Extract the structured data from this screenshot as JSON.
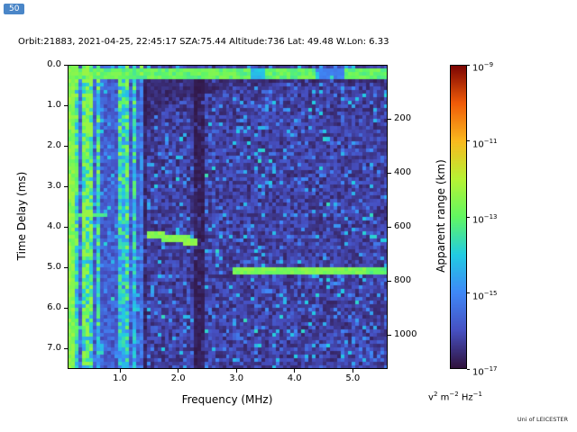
{
  "badge": {
    "label": "50"
  },
  "header": {
    "title": "Orbit:21883, 2021-04-25, 22:45:17 SZA:75.44 Altitude:736 Lat: 49.48 W.Lon: 6.33"
  },
  "footer": {
    "credit": "Uni of LEICESTER"
  },
  "chart_data": {
    "type": "heatmap",
    "title": "",
    "xlabel": "Frequency (MHz)",
    "ylabel": "Time Delay (ms)",
    "y2label": "Apparent range (km)",
    "x_range_mhz": [
      0.1,
      5.6
    ],
    "y_range_ms": [
      0.0,
      7.5
    ],
    "x_ticks": [
      {
        "value": 1.0,
        "label": "1.0"
      },
      {
        "value": 2.0,
        "label": "2.0"
      },
      {
        "value": 3.0,
        "label": "3.0"
      },
      {
        "value": 4.0,
        "label": "4.0"
      },
      {
        "value": 5.0,
        "label": "5.0"
      }
    ],
    "y_ticks": [
      {
        "value": 0.0,
        "label": "0.0"
      },
      {
        "value": 1.0,
        "label": "1.0"
      },
      {
        "value": 2.0,
        "label": "2.0"
      },
      {
        "value": 3.0,
        "label": "3.0"
      },
      {
        "value": 4.0,
        "label": "4.0"
      },
      {
        "value": 5.0,
        "label": "5.0"
      },
      {
        "value": 6.0,
        "label": "6.0"
      },
      {
        "value": 7.0,
        "label": "7.0"
      }
    ],
    "y2_ticks_km": [
      {
        "value": 200,
        "label": "200"
      },
      {
        "value": 400,
        "label": "400"
      },
      {
        "value": 600,
        "label": "600"
      },
      {
        "value": 800,
        "label": "800"
      },
      {
        "value": 1000,
        "label": "1000"
      }
    ],
    "range_km_per_ms": 150,
    "colorbar": {
      "scale": "log10",
      "colormap": "turbo",
      "min_exponent": -17,
      "max_exponent": -9,
      "ticks": [
        {
          "exponent": -9,
          "label_base": "10",
          "label_exp": "−9"
        },
        {
          "exponent": -11,
          "label_base": "10",
          "label_exp": "−11"
        },
        {
          "exponent": -13,
          "label_base": "10",
          "label_exp": "−13"
        },
        {
          "exponent": -15,
          "label_base": "10",
          "label_exp": "−15"
        },
        {
          "exponent": -17,
          "label_base": "10",
          "label_exp": "−17"
        }
      ],
      "unit_parts": [
        {
          "base": "v",
          "exp": "2"
        },
        {
          "base": " m",
          "exp": "−2"
        },
        {
          "base": " Hz",
          "exp": "−1"
        }
      ]
    },
    "grid": {
      "cols": 89,
      "rows": 84,
      "seed": 7
    },
    "background_power_exp": -16.7,
    "features": [
      {
        "name": "direct-signal-band",
        "freq_mhz": [
          0.1,
          5.6
        ],
        "delay_ms": [
          0.08,
          0.34
        ],
        "power_exp": -13.4,
        "desc": "bright cyan-green horizontal band at top across all frequencies"
      },
      {
        "name": "low-freq-interference-stripes",
        "freq_mhz": [
          0.1,
          1.4
        ],
        "delay_ms": [
          0.0,
          7.5
        ],
        "power_exp": -13.2,
        "desc": "vertical cyan/green interference stripes at low frequency, full height"
      },
      {
        "name": "left-edge-column",
        "freq_mhz": [
          0.1,
          0.2
        ],
        "delay_ms": [
          0.0,
          7.5
        ],
        "power_exp": -13.0,
        "desc": "continuous bright column at lowest frequency"
      },
      {
        "name": "absorption-band",
        "freq_mhz": [
          2.28,
          2.46
        ],
        "delay_ms": [
          0.34,
          7.5
        ],
        "power_exp": -16.9,
        "desc": "dark vertical attenuation band near 2.35 MHz"
      },
      {
        "name": "ionospheric-echo-trace",
        "freq_mhz": [
          1.45,
          2.35
        ],
        "delay_ms": [
          4.18,
          4.38
        ],
        "power_exp": -12.9,
        "desc": "bright green gently sloping echo trace near 4.2-4.4 ms"
      },
      {
        "name": "surface-echo-line",
        "freq_mhz": [
          2.95,
          5.6
        ],
        "delay_ms": [
          5.0,
          5.14
        ],
        "power_exp": -13.0,
        "desc": "bright green horizontal echo line near 5.05 ms"
      },
      {
        "name": "low-freq-echo-segment",
        "freq_mhz": [
          0.14,
          0.78
        ],
        "delay_ms": [
          3.66,
          3.78
        ],
        "power_exp": -13.5,
        "desc": "short cyan horizontal dash crossing the stripe region near 3.7 ms"
      },
      {
        "name": "quiet-wedge",
        "freq_mhz": [
          1.42,
          5.6
        ],
        "delay_ms": [
          0.34,
          1.5
        ],
        "power_exp": -16.8,
        "desc": "dark quiet wedge just below the direct-signal band"
      }
    ]
  }
}
